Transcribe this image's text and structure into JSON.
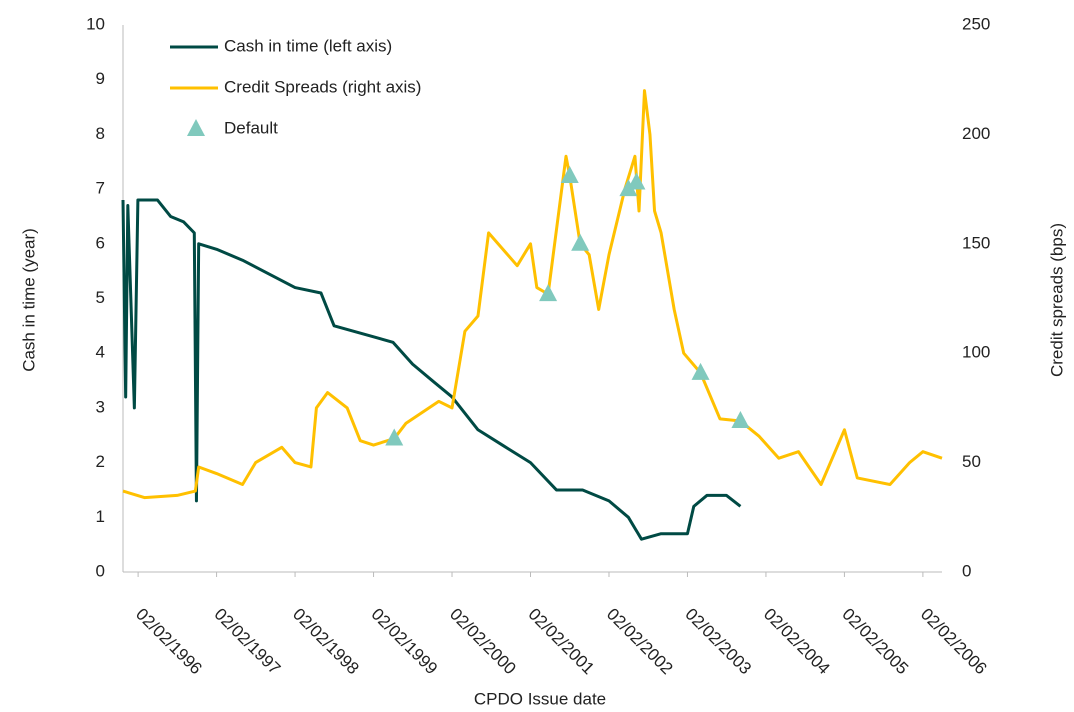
{
  "chart_data": {
    "type": "line",
    "xlabel": "CPDO Issue date",
    "ylabel": "Cash in time (year)",
    "y2label": "Credit spreads (bps)",
    "xlim": [
      "23/11/1995",
      "30/04/2006"
    ],
    "xticks": [
      "02/02/1996",
      "02/02/1997",
      "02/02/1998",
      "02/02/1999",
      "02/02/2000",
      "02/02/2001",
      "02/02/2002",
      "02/02/2003",
      "02/02/2004",
      "02/02/2005",
      "02/02/2006"
    ],
    "ylim": [
      0,
      10
    ],
    "yticks": [
      0,
      1,
      2,
      3,
      4,
      5,
      6,
      7,
      8,
      9,
      10
    ],
    "y2lim": [
      0,
      250
    ],
    "y2ticks": [
      0,
      50,
      100,
      150,
      200,
      250
    ],
    "legend": "top-left",
    "series": [
      {
        "name": "Cash in time (left axis)",
        "color": "#004a44",
        "axis": "y",
        "x": [
          "23/11/1995",
          "05/12/1995",
          "15/12/1995",
          "15/01/1996",
          "01/02/1996",
          "01/05/1996",
          "01/07/1996",
          "01/09/1996",
          "20/10/1996",
          "30/10/1996",
          "10/11/1996",
          "02/02/1997",
          "01/06/1997",
          "02/02/1998",
          "01/06/1998",
          "01/08/1998",
          "02/02/1999",
          "01/05/1999",
          "01/08/1999",
          "01/11/1999",
          "02/02/2000",
          "01/06/2000",
          "01/10/2000",
          "02/02/2001",
          "01/06/2001",
          "01/10/2001",
          "02/02/2002",
          "01/05/2002",
          "01/07/2002",
          "01/10/2002",
          "02/02/2003",
          "01/03/2003",
          "01/05/2003",
          "01/08/2003",
          "05/10/2003"
        ],
        "values": [
          6.8,
          3.2,
          6.7,
          3.0,
          6.8,
          6.8,
          6.5,
          6.4,
          6.2,
          1.3,
          6.0,
          5.9,
          5.7,
          5.2,
          5.1,
          4.5,
          4.3,
          4.2,
          3.8,
          3.5,
          3.2,
          2.6,
          2.3,
          2.0,
          1.5,
          1.5,
          1.3,
          1.0,
          0.6,
          0.7,
          0.7,
          1.2,
          1.4,
          1.4,
          1.2
        ]
      },
      {
        "name": "Credit Spreads (right axis)",
        "color": "#ffc000",
        "axis": "y2",
        "x": [
          "23/11/1995",
          "01/03/1996",
          "01/08/1996",
          "25/10/1996",
          "10/11/1996",
          "02/02/1997",
          "01/06/1997",
          "01/08/1997",
          "01/12/1997",
          "02/02/1998",
          "15/04/1998",
          "10/05/1998",
          "01/07/1998",
          "01/10/1998",
          "01/12/1998",
          "02/02/1999",
          "07/05/1999",
          "01/07/1999",
          "01/12/1999",
          "02/02/2000",
          "01/04/2000",
          "01/06/2000",
          "20/07/2000",
          "01/12/2000",
          "02/02/2001",
          "01/03/2001",
          "23/04/2001",
          "15/07/2001",
          "02/08/2001",
          "20/09/2001",
          "01/11/2001",
          "15/12/2001",
          "02/02/2002",
          "15/04/2002",
          "01/06/2002",
          "20/06/2002",
          "15/07/2002",
          "10/08/2002",
          "01/09/2002",
          "01/10/2002",
          "01/12/2002",
          "15/01/2003",
          "02/04/2003",
          "01/07/2003",
          "05/10/2003",
          "01/01/2004",
          "01/04/2004",
          "01/07/2004",
          "15/10/2004",
          "02/02/2005",
          "01/04/2005",
          "01/09/2005",
          "01/12/2005",
          "02/02/2006",
          "30/04/2006"
        ],
        "values": [
          37,
          34,
          35,
          37,
          48,
          45,
          40,
          50,
          57,
          50,
          48,
          75,
          82,
          75,
          60,
          58,
          61,
          68,
          78,
          75,
          110,
          117,
          155,
          140,
          150,
          130,
          127,
          190,
          181,
          150,
          145,
          120,
          145,
          175,
          190,
          165,
          220,
          200,
          165,
          155,
          120,
          100,
          91,
          70,
          69,
          62,
          52,
          55,
          40,
          65,
          43,
          40,
          50,
          55,
          52
        ]
      },
      {
        "name": "Default",
        "color": "#80c9bd",
        "axis": "y2",
        "marker": "triangle",
        "x": [
          "07/05/1999",
          "23/04/2001",
          "02/08/2001",
          "20/09/2001",
          "01/05/2002",
          "08/06/2002",
          "02/04/2003",
          "05/10/2003"
        ],
        "values": [
          61,
          127,
          181,
          150,
          175,
          178,
          91,
          69
        ]
      }
    ]
  }
}
